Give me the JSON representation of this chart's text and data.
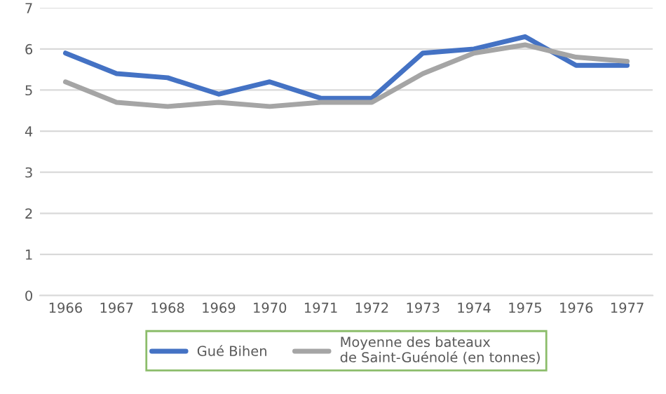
{
  "chart_data": {
    "type": "line",
    "categories": [
      "1966",
      "1967",
      "1968",
      "1969",
      "1970",
      "1971",
      "1972",
      "1973",
      "1974",
      "1975",
      "1976",
      "1977"
    ],
    "series": [
      {
        "name": "Gué Bihen",
        "color": "#4472c4",
        "values": [
          5.9,
          5.4,
          5.3,
          4.9,
          5.2,
          4.8,
          4.8,
          5.9,
          6.0,
          6.3,
          5.6,
          5.6
        ]
      },
      {
        "name": "Moyenne des bateaux\nde Saint-Guénolé (en tonnes)",
        "color": "#a5a5a5",
        "values": [
          5.2,
          4.7,
          4.6,
          4.7,
          4.6,
          4.7,
          4.7,
          5.4,
          5.9,
          6.1,
          5.8,
          5.7
        ]
      }
    ],
    "ylim": [
      0,
      7
    ],
    "yticks": [
      0,
      1,
      2,
      3,
      4,
      5,
      6,
      7
    ],
    "grid": "y",
    "legend": "bottom",
    "line_style": "solid",
    "marker": "none"
  }
}
